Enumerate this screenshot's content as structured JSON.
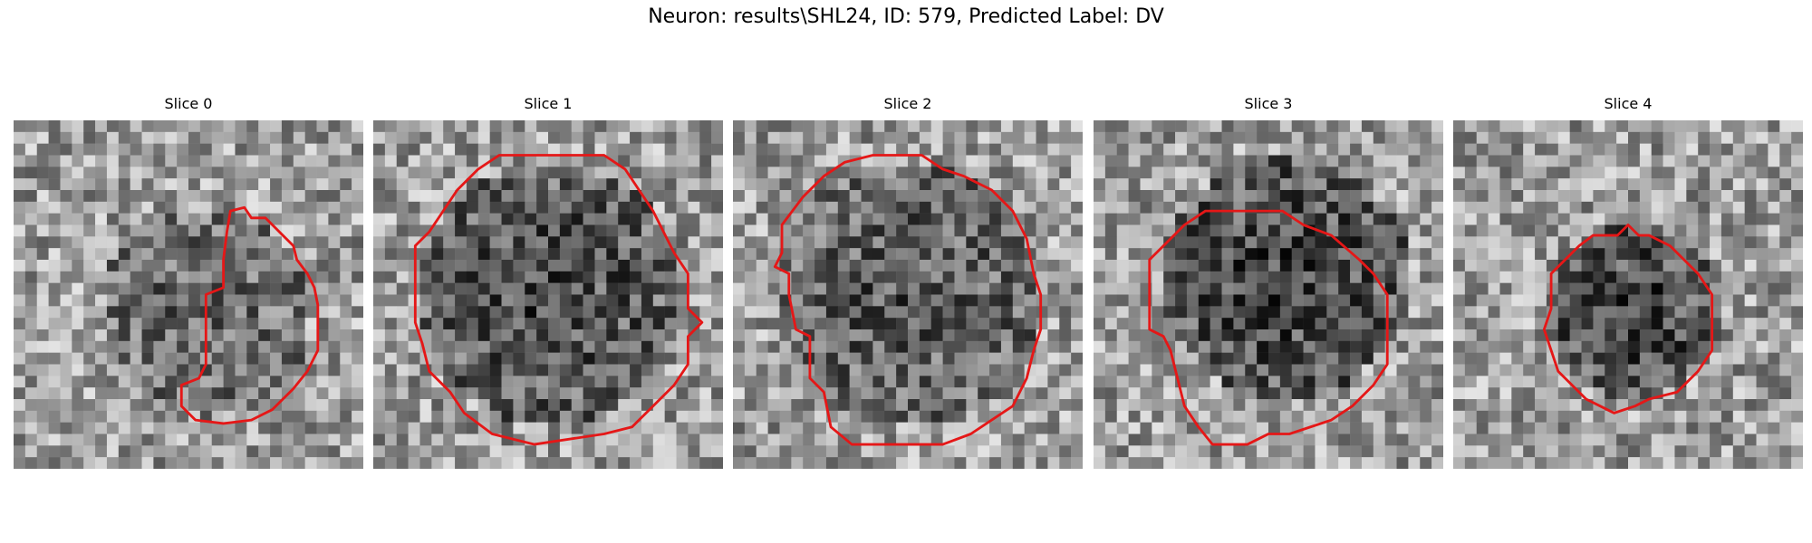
{
  "figure": {
    "title": "Neuron: results\\SHL24, ID: 579, Predicted Label: DV"
  },
  "panels": [
    {
      "title": "Slice 0",
      "seed": 11,
      "dark_center": [
        0.55,
        0.55
      ],
      "dark_radius": 0.3,
      "dark_strength": 0.25,
      "contour": [
        [
          0.62,
          0.26
        ],
        [
          0.66,
          0.25
        ],
        [
          0.68,
          0.28
        ],
        [
          0.72,
          0.28
        ],
        [
          0.76,
          0.32
        ],
        [
          0.8,
          0.36
        ],
        [
          0.81,
          0.4
        ],
        [
          0.84,
          0.44
        ],
        [
          0.86,
          0.48
        ],
        [
          0.87,
          0.53
        ],
        [
          0.87,
          0.6
        ],
        [
          0.87,
          0.66
        ],
        [
          0.84,
          0.72
        ],
        [
          0.8,
          0.77
        ],
        [
          0.74,
          0.83
        ],
        [
          0.68,
          0.86
        ],
        [
          0.6,
          0.87
        ],
        [
          0.52,
          0.86
        ],
        [
          0.48,
          0.82
        ],
        [
          0.48,
          0.76
        ],
        [
          0.53,
          0.74
        ],
        [
          0.55,
          0.7
        ],
        [
          0.55,
          0.62
        ],
        [
          0.55,
          0.5
        ],
        [
          0.6,
          0.48
        ],
        [
          0.6,
          0.4
        ],
        [
          0.61,
          0.32
        ]
      ]
    },
    {
      "title": "Slice 1",
      "seed": 23,
      "dark_center": [
        0.5,
        0.5
      ],
      "dark_radius": 0.38,
      "dark_strength": 0.35,
      "contour": [
        [
          0.36,
          0.1
        ],
        [
          0.66,
          0.1
        ],
        [
          0.72,
          0.14
        ],
        [
          0.76,
          0.2
        ],
        [
          0.8,
          0.26
        ],
        [
          0.83,
          0.32
        ],
        [
          0.86,
          0.38
        ],
        [
          0.9,
          0.44
        ],
        [
          0.9,
          0.54
        ],
        [
          0.94,
          0.58
        ],
        [
          0.9,
          0.62
        ],
        [
          0.9,
          0.7
        ],
        [
          0.86,
          0.76
        ],
        [
          0.8,
          0.82
        ],
        [
          0.74,
          0.88
        ],
        [
          0.66,
          0.9
        ],
        [
          0.46,
          0.93
        ],
        [
          0.34,
          0.9
        ],
        [
          0.26,
          0.84
        ],
        [
          0.22,
          0.78
        ],
        [
          0.16,
          0.72
        ],
        [
          0.14,
          0.64
        ],
        [
          0.12,
          0.58
        ],
        [
          0.12,
          0.36
        ],
        [
          0.16,
          0.32
        ],
        [
          0.2,
          0.26
        ],
        [
          0.24,
          0.2
        ],
        [
          0.3,
          0.14
        ]
      ]
    },
    {
      "title": "Slice 2",
      "seed": 37,
      "dark_center": [
        0.5,
        0.5
      ],
      "dark_radius": 0.38,
      "dark_strength": 0.3,
      "contour": [
        [
          0.4,
          0.1
        ],
        [
          0.54,
          0.1
        ],
        [
          0.6,
          0.14
        ],
        [
          0.66,
          0.16
        ],
        [
          0.74,
          0.2
        ],
        [
          0.8,
          0.26
        ],
        [
          0.84,
          0.34
        ],
        [
          0.86,
          0.44
        ],
        [
          0.88,
          0.5
        ],
        [
          0.88,
          0.6
        ],
        [
          0.86,
          0.66
        ],
        [
          0.84,
          0.74
        ],
        [
          0.8,
          0.82
        ],
        [
          0.74,
          0.86
        ],
        [
          0.68,
          0.9
        ],
        [
          0.6,
          0.93
        ],
        [
          0.34,
          0.93
        ],
        [
          0.28,
          0.88
        ],
        [
          0.26,
          0.78
        ],
        [
          0.22,
          0.74
        ],
        [
          0.22,
          0.62
        ],
        [
          0.18,
          0.6
        ],
        [
          0.16,
          0.5
        ],
        [
          0.16,
          0.44
        ],
        [
          0.12,
          0.42
        ],
        [
          0.14,
          0.38
        ],
        [
          0.14,
          0.3
        ],
        [
          0.2,
          0.22
        ],
        [
          0.26,
          0.16
        ],
        [
          0.32,
          0.12
        ]
      ]
    },
    {
      "title": "Slice 3",
      "seed": 53,
      "dark_center": [
        0.55,
        0.45
      ],
      "dark_radius": 0.35,
      "dark_strength": 0.4,
      "contour": [
        [
          0.32,
          0.26
        ],
        [
          0.54,
          0.26
        ],
        [
          0.6,
          0.3
        ],
        [
          0.68,
          0.33
        ],
        [
          0.76,
          0.4
        ],
        [
          0.8,
          0.44
        ],
        [
          0.84,
          0.5
        ],
        [
          0.84,
          0.6
        ],
        [
          0.84,
          0.7
        ],
        [
          0.8,
          0.76
        ],
        [
          0.74,
          0.82
        ],
        [
          0.68,
          0.86
        ],
        [
          0.56,
          0.9
        ],
        [
          0.5,
          0.9
        ],
        [
          0.44,
          0.93
        ],
        [
          0.34,
          0.93
        ],
        [
          0.3,
          0.88
        ],
        [
          0.26,
          0.82
        ],
        [
          0.24,
          0.74
        ],
        [
          0.22,
          0.66
        ],
        [
          0.2,
          0.62
        ],
        [
          0.16,
          0.6
        ],
        [
          0.16,
          0.4
        ],
        [
          0.2,
          0.36
        ],
        [
          0.26,
          0.3
        ]
      ]
    },
    {
      "title": "Slice 4",
      "seed": 71,
      "dark_center": [
        0.52,
        0.55
      ],
      "dark_radius": 0.25,
      "dark_strength": 0.4,
      "contour": [
        [
          0.5,
          0.3
        ],
        [
          0.53,
          0.33
        ],
        [
          0.56,
          0.33
        ],
        [
          0.62,
          0.36
        ],
        [
          0.66,
          0.4
        ],
        [
          0.7,
          0.44
        ],
        [
          0.74,
          0.5
        ],
        [
          0.74,
          0.6
        ],
        [
          0.74,
          0.66
        ],
        [
          0.7,
          0.72
        ],
        [
          0.64,
          0.78
        ],
        [
          0.56,
          0.8
        ],
        [
          0.52,
          0.82
        ],
        [
          0.46,
          0.84
        ],
        [
          0.42,
          0.82
        ],
        [
          0.38,
          0.8
        ],
        [
          0.34,
          0.76
        ],
        [
          0.3,
          0.72
        ],
        [
          0.28,
          0.66
        ],
        [
          0.26,
          0.6
        ],
        [
          0.28,
          0.54
        ],
        [
          0.28,
          0.44
        ],
        [
          0.32,
          0.4
        ],
        [
          0.36,
          0.36
        ],
        [
          0.4,
          0.33
        ],
        [
          0.47,
          0.33
        ]
      ]
    }
  ],
  "colors": {
    "contour": "#e51717",
    "background": "#ffffff"
  }
}
